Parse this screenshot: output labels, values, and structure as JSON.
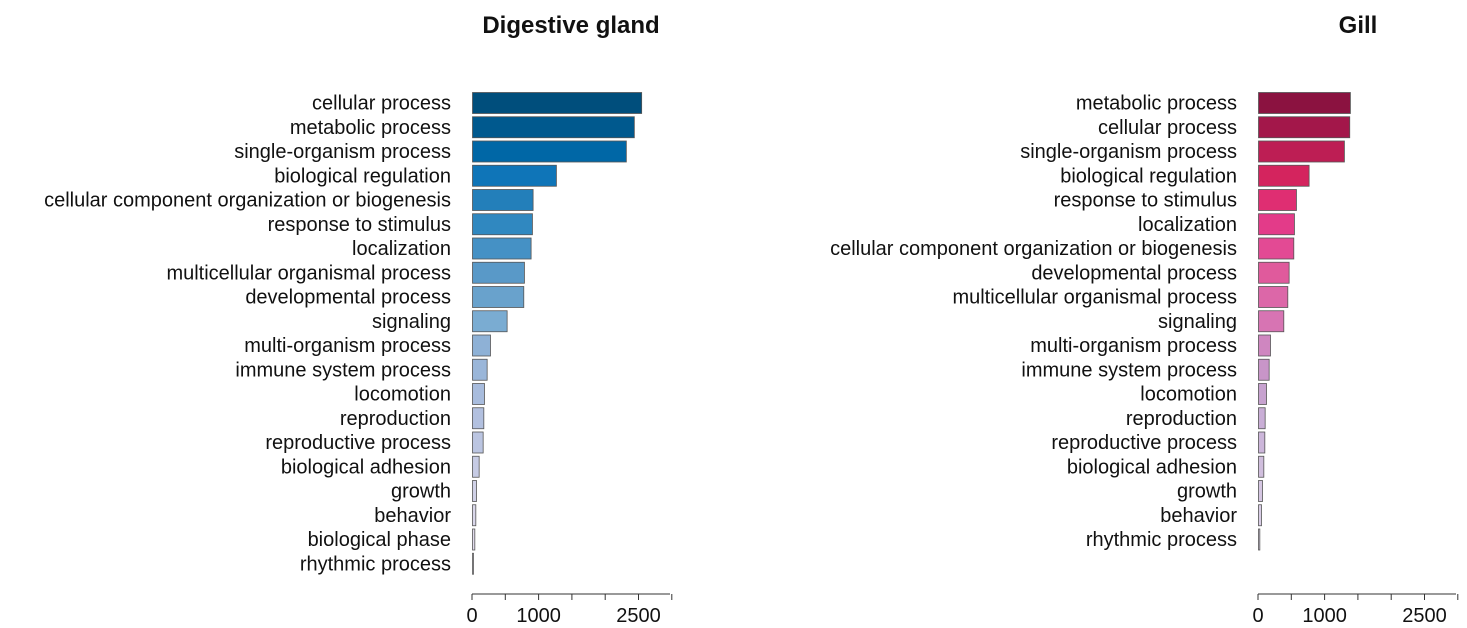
{
  "chart_data": [
    {
      "type": "bar",
      "orientation": "horizontal",
      "title": "Digestive gland",
      "categories": [
        "cellular process",
        "metabolic process",
        "single-organism process",
        "biological regulation",
        "cellular component organization or biogenesis",
        "response to stimulus",
        "localization",
        "multicellular organismal process",
        "developmental process",
        "signaling",
        "multi-organism process",
        "immune system process",
        "locomotion",
        "reproduction",
        "reproductive process",
        "biological adhesion",
        "growth",
        "behavior",
        "biological phase",
        "rhythmic process"
      ],
      "values": [
        2540,
        2430,
        2310,
        1260,
        910,
        900,
        880,
        780,
        770,
        520,
        270,
        220,
        180,
        170,
        160,
        100,
        60,
        50,
        35,
        15
      ],
      "xticks": [
        "0",
        "1000",
        "2500"
      ],
      "xtick_values": [
        0,
        1000,
        2500
      ],
      "xlim": [
        0,
        3000
      ],
      "colors": [
        "#004e7c",
        "#00598e",
        "#0067a6",
        "#0f75b8",
        "#237fba",
        "#3088c0",
        "#4591c5",
        "#5999c8",
        "#69a2cc",
        "#7aacd2",
        "#8eb1d6",
        "#9ab6d9",
        "#a8bcdd",
        "#b2c0df",
        "#bbc5e1",
        "#c6cbe4",
        "#d0d1e7",
        "#d9d7ea",
        "#e1dced",
        "#e8e2f0"
      ]
    },
    {
      "type": "bar",
      "orientation": "horizontal",
      "title": "Gill",
      "categories": [
        "metabolic process",
        "cellular process",
        "single-organism process",
        "biological regulation",
        "response to stimulus",
        "localization",
        "cellular component organization or biogenesis",
        "developmental process",
        "multicellular organismal process",
        "signaling",
        "multi-organism process",
        "immune system process",
        "locomotion",
        "reproduction",
        "reproductive process",
        "biological adhesion",
        "growth",
        "behavior",
        "rhythmic process"
      ],
      "values": [
        1380,
        1370,
        1290,
        760,
        570,
        540,
        530,
        460,
        440,
        380,
        180,
        160,
        120,
        100,
        95,
        80,
        60,
        45,
        20
      ],
      "xticks": [
        "0",
        "1000",
        "2500"
      ],
      "xtick_values": [
        0,
        1000,
        2500
      ],
      "xlim": [
        0,
        3000
      ],
      "colors": [
        "#8b1240",
        "#a3174a",
        "#bd1e54",
        "#d4245e",
        "#df2e72",
        "#e33b89",
        "#e34a94",
        "#e05a9c",
        "#dc67a8",
        "#d774b3",
        "#cf86c0",
        "#c895c8",
        "#c7a2cf",
        "#c9aed6",
        "#ccb6da",
        "#d0bedd",
        "#d5c6e2",
        "#d9cde6",
        "#dfd5ea"
      ]
    }
  ]
}
